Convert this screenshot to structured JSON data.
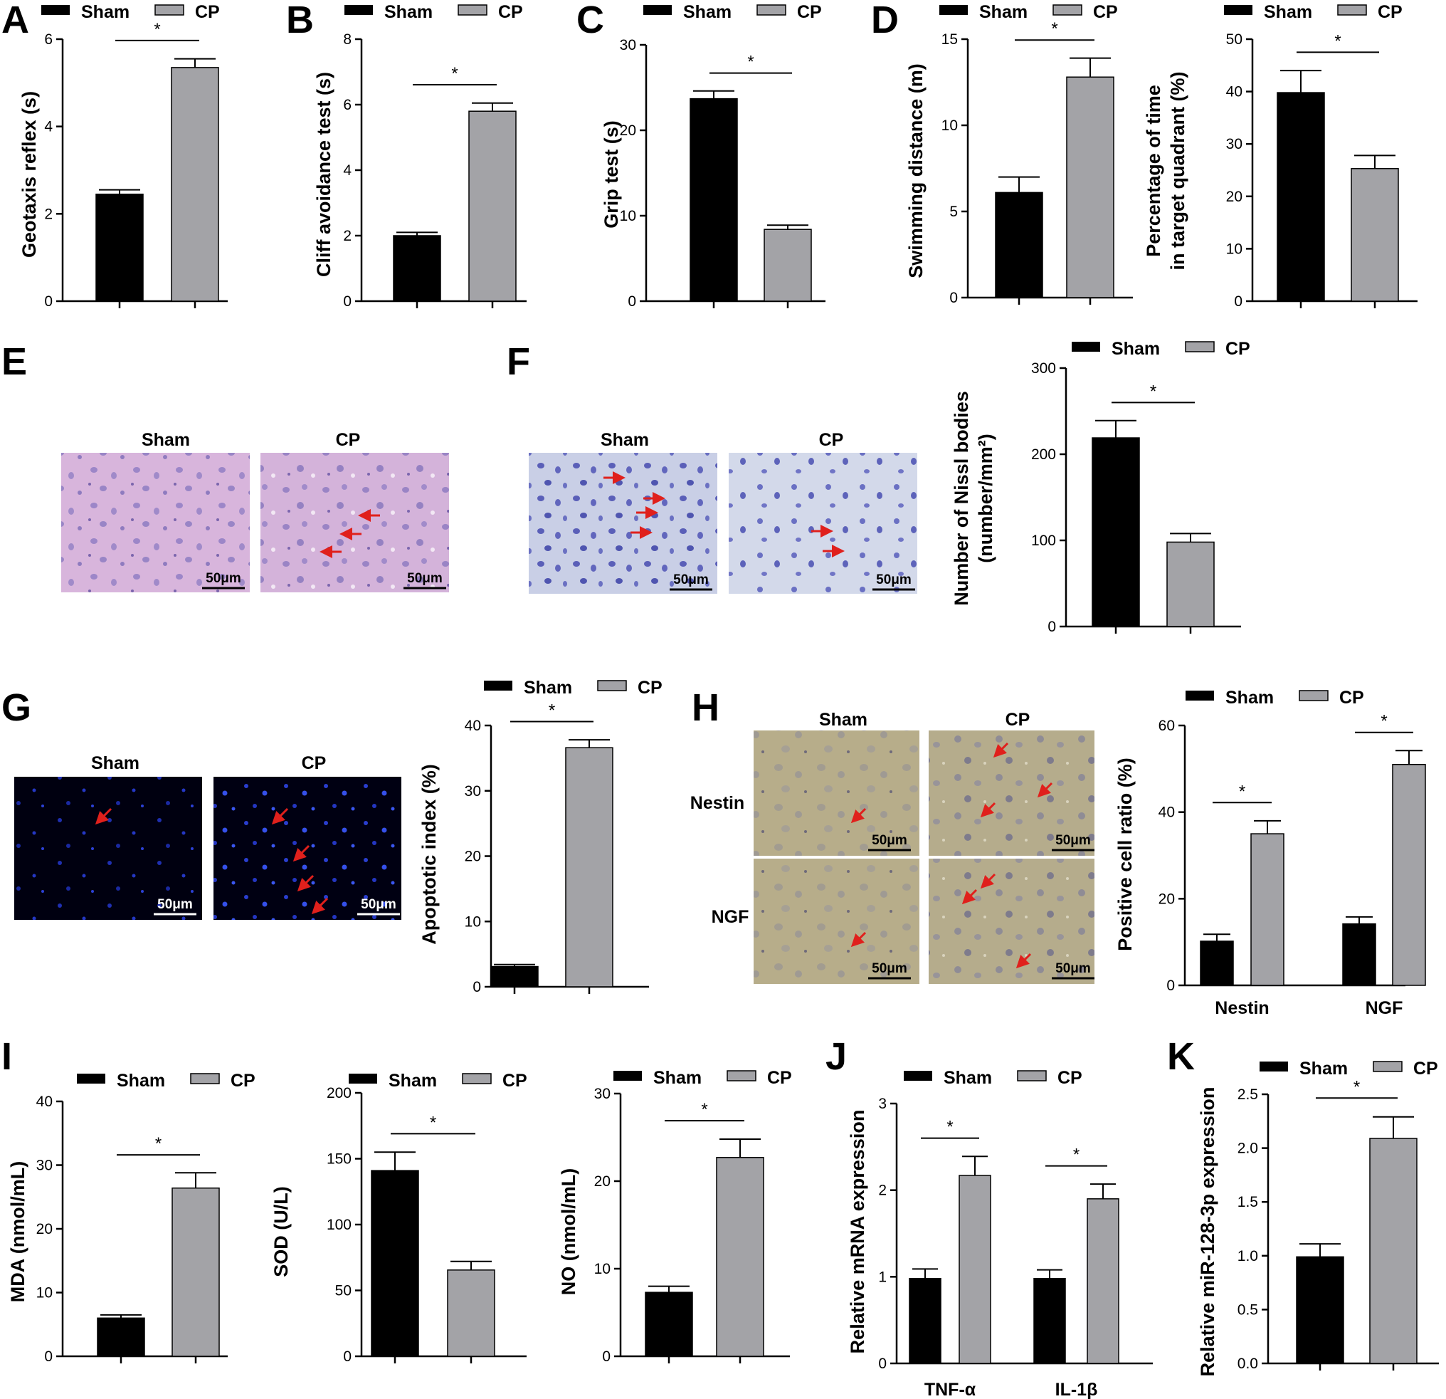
{
  "panel_labels": [
    "A",
    "B",
    "C",
    "D",
    "E",
    "F",
    "G",
    "H",
    "I",
    "J",
    "K"
  ],
  "colors": {
    "sham": "#000000",
    "cp": "#a3a3a7",
    "axis": "#000000"
  },
  "legend": {
    "sham": "Sham",
    "cp": "CP"
  },
  "significance_mark": "*",
  "scale_bar_text": "50μm",
  "chart_data": [
    {
      "id": "A",
      "type": "bar",
      "ylabel": "Geotaxis reflex (s)",
      "ylim": [
        0,
        6
      ],
      "yticks": [
        0,
        2,
        4,
        6
      ],
      "categories": [
        ""
      ],
      "series": [
        {
          "name": "Sham",
          "values": [
            2.45
          ],
          "errors": [
            0.1
          ]
        },
        {
          "name": "CP",
          "values": [
            5.35
          ],
          "errors": [
            0.2
          ]
        }
      ],
      "significance": [
        "*"
      ]
    },
    {
      "id": "B",
      "type": "bar",
      "ylabel": "Cliff avoidance test (s)",
      "ylim": [
        0,
        8
      ],
      "yticks": [
        0,
        2,
        4,
        6,
        8
      ],
      "categories": [
        ""
      ],
      "series": [
        {
          "name": "Sham",
          "values": [
            2.0
          ],
          "errors": [
            0.1
          ]
        },
        {
          "name": "CP",
          "values": [
            5.8
          ],
          "errors": [
            0.25
          ]
        }
      ],
      "significance": [
        "*"
      ]
    },
    {
      "id": "C",
      "type": "bar",
      "ylabel": "Grip test (s)",
      "ylim": [
        0,
        30
      ],
      "yticks": [
        0,
        10,
        20,
        30
      ],
      "categories": [
        ""
      ],
      "series": [
        {
          "name": "Sham",
          "values": [
            23.7
          ],
          "errors": [
            0.9
          ]
        },
        {
          "name": "CP",
          "values": [
            8.4
          ],
          "errors": [
            0.5
          ]
        }
      ],
      "significance": [
        "*"
      ]
    },
    {
      "id": "D1",
      "type": "bar",
      "ylabel": "Swimming distance (m)",
      "ylim": [
        0,
        15
      ],
      "yticks": [
        0,
        5,
        10,
        15
      ],
      "categories": [
        ""
      ],
      "series": [
        {
          "name": "Sham",
          "values": [
            6.1
          ],
          "errors": [
            0.9
          ]
        },
        {
          "name": "CP",
          "values": [
            12.8
          ],
          "errors": [
            1.1
          ]
        }
      ],
      "significance": [
        "*"
      ]
    },
    {
      "id": "D2",
      "type": "bar",
      "ylabel": "Percentage of time",
      "ylabel2": "in target quadrant (%)",
      "ylim": [
        0,
        50
      ],
      "yticks": [
        0,
        10,
        20,
        30,
        40,
        50
      ],
      "categories": [
        ""
      ],
      "series": [
        {
          "name": "Sham",
          "values": [
            39.8
          ],
          "errors": [
            4.2
          ]
        },
        {
          "name": "CP",
          "values": [
            25.3
          ],
          "errors": [
            2.5
          ]
        }
      ],
      "significance": [
        "*"
      ]
    },
    {
      "id": "F",
      "type": "bar",
      "ylabel": "Number of Nissl bodies",
      "ylabel2": "(number/mm²)",
      "ylim": [
        0,
        300
      ],
      "yticks": [
        0,
        100,
        200,
        300
      ],
      "categories": [
        ""
      ],
      "series": [
        {
          "name": "Sham",
          "values": [
            219
          ],
          "errors": [
            20
          ]
        },
        {
          "name": "CP",
          "values": [
            98
          ],
          "errors": [
            10
          ]
        }
      ],
      "significance": [
        "*"
      ]
    },
    {
      "id": "G",
      "type": "bar",
      "ylabel": "Apoptotic index (%)",
      "ylim": [
        0,
        40
      ],
      "yticks": [
        0,
        10,
        20,
        30,
        40
      ],
      "categories": [
        ""
      ],
      "series": [
        {
          "name": "Sham",
          "values": [
            3.1
          ],
          "errors": [
            0.3
          ]
        },
        {
          "name": "CP",
          "values": [
            36.6
          ],
          "errors": [
            1.2
          ]
        }
      ],
      "significance": [
        "*"
      ]
    },
    {
      "id": "H",
      "type": "bar",
      "ylabel": "Positive cell ratio (%)",
      "ylim": [
        0,
        60
      ],
      "yticks": [
        0,
        20,
        40,
        60
      ],
      "categories": [
        "Nestin",
        "NGF"
      ],
      "series": [
        {
          "name": "Sham",
          "values": [
            10.2,
            14.2
          ],
          "errors": [
            1.6,
            1.6
          ]
        },
        {
          "name": "CP",
          "values": [
            35.0,
            51.0
          ],
          "errors": [
            3.0,
            3.2
          ]
        }
      ],
      "significance": [
        "*",
        "*"
      ]
    },
    {
      "id": "I1",
      "type": "bar",
      "ylabel": "MDA (nmol/mL)",
      "ylim": [
        0,
        40
      ],
      "yticks": [
        0,
        10,
        20,
        30,
        40
      ],
      "categories": [
        ""
      ],
      "series": [
        {
          "name": "Sham",
          "values": [
            6.0
          ],
          "errors": [
            0.5
          ]
        },
        {
          "name": "CP",
          "values": [
            26.4
          ],
          "errors": [
            2.4
          ]
        }
      ],
      "significance": [
        "*"
      ]
    },
    {
      "id": "I2",
      "type": "bar",
      "ylabel": "SOD (U/L)",
      "ylim": [
        0,
        200
      ],
      "yticks": [
        0,
        50,
        100,
        150,
        200
      ],
      "categories": [
        ""
      ],
      "series": [
        {
          "name": "Sham",
          "values": [
            141
          ],
          "errors": [
            14
          ]
        },
        {
          "name": "CP",
          "values": [
            65.5
          ],
          "errors": [
            6.5
          ]
        }
      ],
      "significance": [
        "*"
      ]
    },
    {
      "id": "I3",
      "type": "bar",
      "ylabel": "NO (nmol/mL)",
      "ylim": [
        0,
        30
      ],
      "yticks": [
        0,
        10,
        20,
        30
      ],
      "categories": [
        ""
      ],
      "series": [
        {
          "name": "Sham",
          "values": [
            7.3
          ],
          "errors": [
            0.7
          ]
        },
        {
          "name": "CP",
          "values": [
            22.7
          ],
          "errors": [
            2.1
          ]
        }
      ],
      "significance": [
        "*"
      ]
    },
    {
      "id": "J",
      "type": "bar",
      "ylabel": "Relative mRNA expression",
      "ylim": [
        0,
        3
      ],
      "yticks": [
        0,
        1,
        2,
        3
      ],
      "categories": [
        "TNF-α",
        "IL-1β"
      ],
      "series": [
        {
          "name": "Sham",
          "values": [
            0.98,
            0.98
          ],
          "errors": [
            0.11,
            0.1
          ]
        },
        {
          "name": "CP",
          "values": [
            2.17,
            1.9
          ],
          "errors": [
            0.22,
            0.17
          ]
        }
      ],
      "significance": [
        "*",
        "*"
      ]
    },
    {
      "id": "K",
      "type": "bar",
      "ylabel": "Relative miR-128-3p expression",
      "ylim": [
        0,
        2.5
      ],
      "yticks": [
        "0.0",
        "0.5",
        "1.0",
        "1.5",
        "2.0",
        "2.5"
      ],
      "categories": [
        ""
      ],
      "series": [
        {
          "name": "Sham",
          "values": [
            0.99
          ],
          "errors": [
            0.12
          ]
        },
        {
          "name": "CP",
          "values": [
            2.09
          ],
          "errors": [
            0.2
          ]
        }
      ],
      "significance": [
        "*"
      ]
    }
  ],
  "image_panels": {
    "E": {
      "titles": [
        "Sham",
        "CP"
      ]
    },
    "F": {
      "titles": [
        "Sham",
        "CP"
      ]
    },
    "G": {
      "titles": [
        "Sham",
        "CP"
      ]
    },
    "H": {
      "col_titles": [
        "Sham",
        "CP"
      ],
      "row_titles": [
        "Nestin",
        "NGF"
      ]
    }
  }
}
